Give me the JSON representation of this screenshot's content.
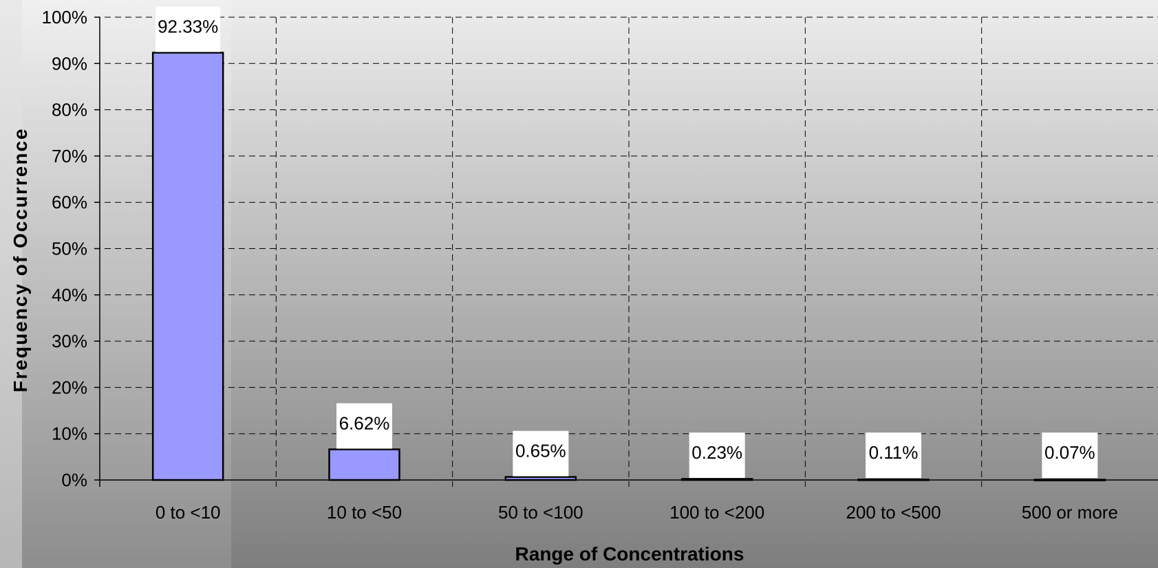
{
  "chart_data": {
    "type": "bar",
    "categories": [
      "0 to <10",
      "10 to <50",
      "50 to <100",
      "100 to <200",
      "200 to <500",
      "500 or more"
    ],
    "values": [
      92.33,
      6.62,
      0.65,
      0.23,
      0.11,
      0.07
    ],
    "data_labels": [
      "92.33%",
      "6.62%",
      "0.65%",
      "0.23%",
      "0.11%",
      "0.07%"
    ],
    "xlabel": "Range of Concentrations",
    "ylabel": "Frequency of Occurrence",
    "ylim": [
      0,
      100
    ],
    "yticks": [
      0,
      10,
      20,
      30,
      40,
      50,
      60,
      70,
      80,
      90,
      100
    ],
    "ytick_labels": [
      "0%",
      "10%",
      "20%",
      "30%",
      "40%",
      "50%",
      "60%",
      "70%",
      "80%",
      "90%",
      "100%"
    ],
    "grid": true,
    "legend": "none",
    "colors": {
      "bar_fill": "#9999FF",
      "bar_stroke": "#000000",
      "grid": "#000000",
      "label_box": "#FFFFFF",
      "background_top": "#EDEDED",
      "background_bottom": "#7E7E7E"
    }
  }
}
